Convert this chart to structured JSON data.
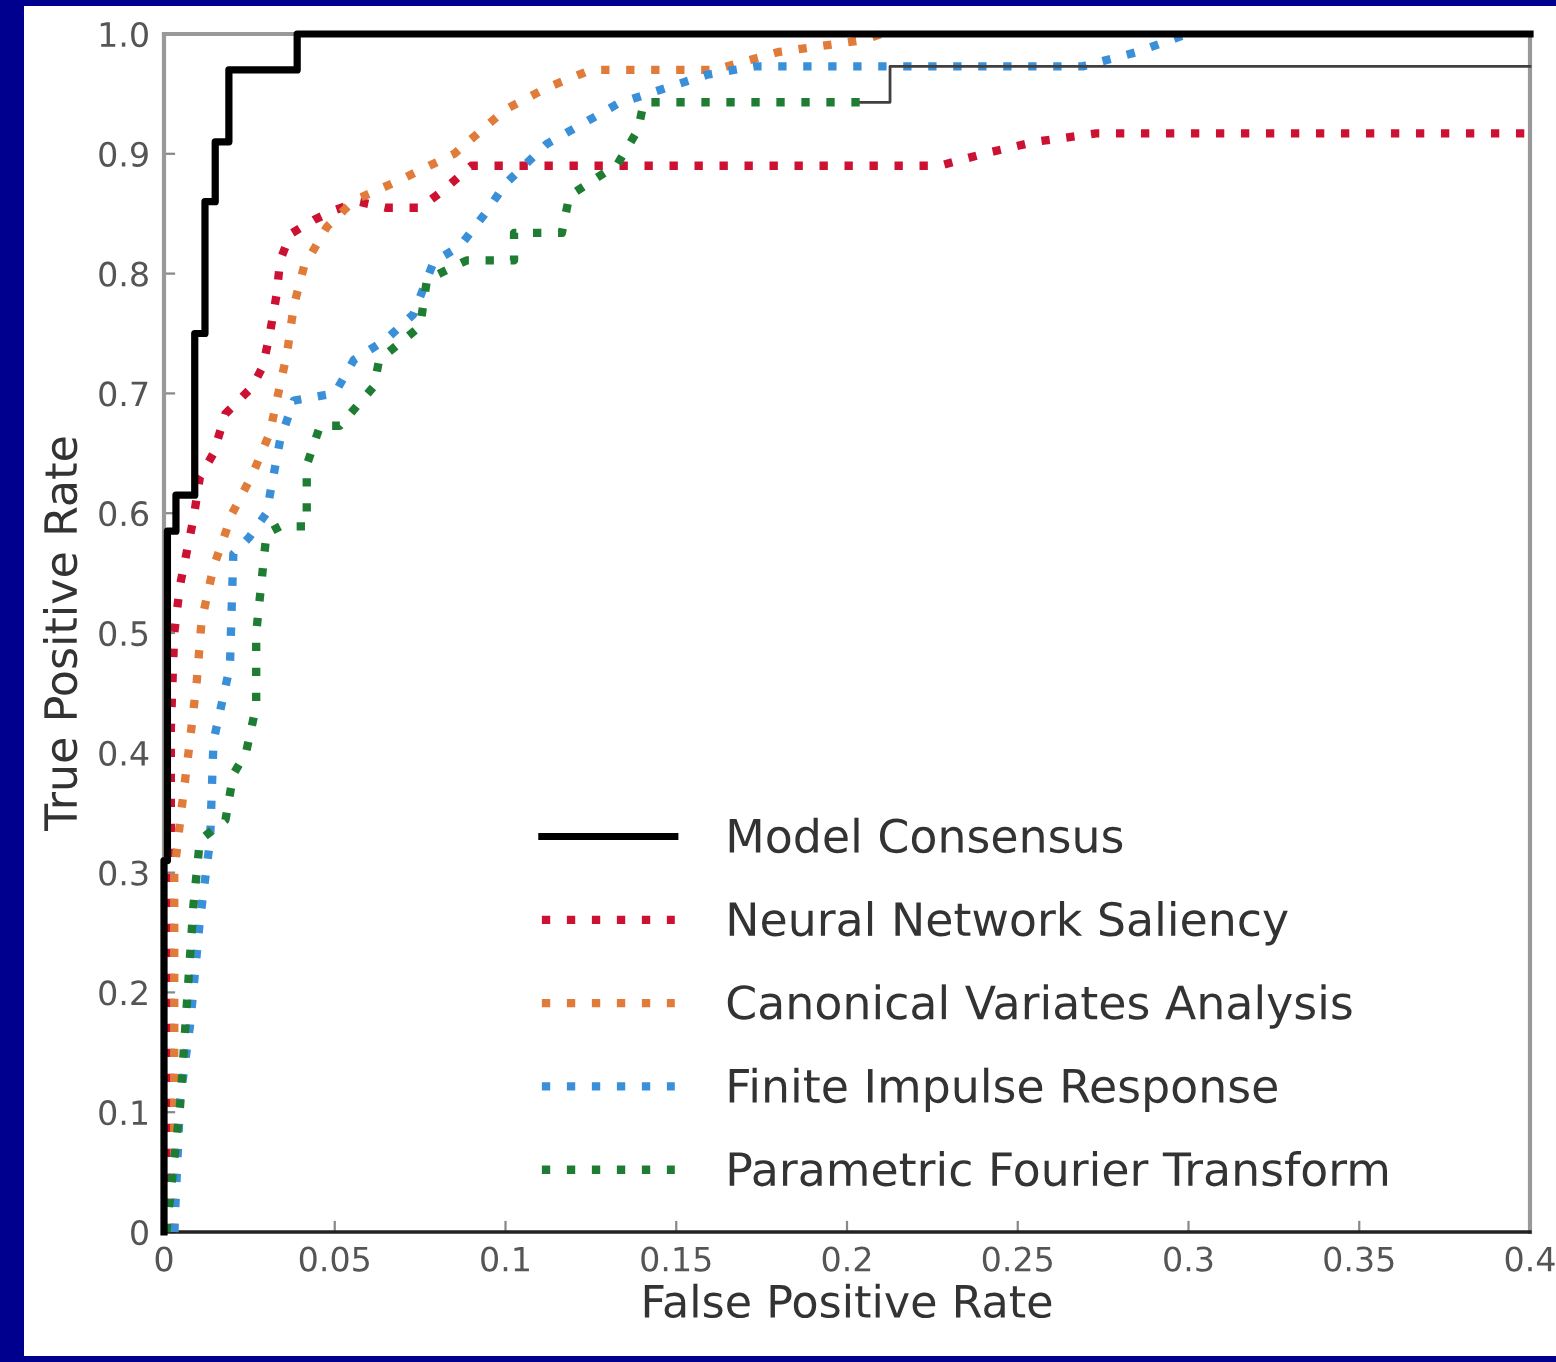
{
  "chart_data": {
    "type": "line",
    "xlabel": "False Positive Rate",
    "ylabel": "True Positive Rate",
    "xlim": [
      0,
      0.4
    ],
    "ylim": [
      0,
      1.0
    ],
    "xticks": [
      0,
      0.05,
      0.1,
      0.15,
      0.2,
      0.25,
      0.3,
      0.35,
      0.4
    ],
    "yticks": [
      0,
      0.1,
      0.2,
      0.3,
      0.4,
      0.5,
      0.6,
      0.7,
      0.8,
      0.9,
      {
        "value": 1.0,
        "label": "1.0"
      }
    ],
    "legend": "bottom right",
    "series": [
      {
        "name": "Model Consensus",
        "color": "#000000",
        "line_style": "solid",
        "x": [
          0,
          0,
          0.001,
          0.001,
          0.0035,
          0.0035,
          0.009,
          0.009,
          0.012,
          0.012,
          0.015,
          0.015,
          0.019,
          0.019,
          0.039,
          0.039,
          0.4
        ],
        "values": [
          0,
          0.31,
          0.31,
          0.585,
          0.585,
          0.615,
          0.615,
          0.75,
          0.75,
          0.86,
          0.86,
          0.91,
          0.91,
          0.97,
          0.97,
          1.0,
          1.0
        ]
      },
      {
        "name": "Neural Network Saliency",
        "color": "#cc1133",
        "line_style": "dotted",
        "x": [
          0.002,
          0.002,
          0.003,
          0.0047,
          0.0086,
          0.0105,
          0.0145,
          0.018,
          0.026,
          0.029,
          0.031,
          0.033,
          0.034,
          0.037,
          0.044,
          0.05,
          0.057,
          0.065,
          0.075,
          0.082,
          0.09,
          0.227,
          0.24,
          0.255,
          0.273,
          0.4
        ],
        "values": [
          0,
          0.42,
          0.5,
          0.54,
          0.595,
          0.63,
          0.65,
          0.683,
          0.706,
          0.723,
          0.75,
          0.783,
          0.811,
          0.833,
          0.845,
          0.853,
          0.86,
          0.855,
          0.855,
          0.87,
          0.89,
          0.89,
          0.9,
          0.91,
          0.917,
          0.917
        ]
      },
      {
        "name": "Canonical Variates Analysis",
        "color": "#e07b39",
        "line_style": "dotted",
        "x": [
          0.003,
          0.003,
          0.005,
          0.0076,
          0.0096,
          0.011,
          0.0145,
          0.02,
          0.026,
          0.031,
          0.033,
          0.036,
          0.038,
          0.041,
          0.0477,
          0.0556,
          0.069,
          0.085,
          0.1,
          0.112,
          0.125,
          0.161,
          0.18,
          0.205,
          0.21
        ],
        "values": [
          0,
          0.3,
          0.35,
          0.41,
          0.46,
          0.51,
          0.555,
          0.6,
          0.633,
          0.667,
          0.694,
          0.733,
          0.773,
          0.806,
          0.839,
          0.861,
          0.878,
          0.9,
          0.937,
          0.955,
          0.97,
          0.97,
          0.985,
          0.995,
          1.0
        ]
      },
      {
        "name": "Finite Impulse Response",
        "color": "#3a8fd9",
        "line_style": "dotted",
        "x": [
          0.003,
          0.0047,
          0.0076,
          0.0105,
          0.0135,
          0.0145,
          0.0193,
          0.0203,
          0.025,
          0.03,
          0.034,
          0.038,
          0.05,
          0.0556,
          0.065,
          0.073,
          0.079,
          0.0867,
          0.094,
          0.1,
          0.112,
          0.133,
          0.159,
          0.173,
          0.269,
          0.285,
          0.2996
        ],
        "values": [
          0,
          0.11,
          0.172,
          0.26,
          0.327,
          0.41,
          0.472,
          0.566,
          0.58,
          0.6,
          0.661,
          0.694,
          0.7,
          0.728,
          0.745,
          0.766,
          0.81,
          0.823,
          0.85,
          0.875,
          0.908,
          0.942,
          0.966,
          0.973,
          0.973,
          0.985,
          1.0
        ]
      },
      {
        "name": "Parametric Fourier Transform",
        "color": "#1e7d32",
        "line_style": "dotted",
        "x": [
          0.0007,
          0.0047,
          0.0086,
          0.0105,
          0.018,
          0.0203,
          0.024,
          0.027,
          0.027,
          0.03,
          0.034,
          0.0418,
          0.0418,
          0.0457,
          0.0515,
          0.0615,
          0.063,
          0.075,
          0.077,
          0.0886,
          0.1025,
          0.1025,
          0.1165,
          0.1187,
          0.1327,
          0.1388,
          0.1405,
          0.204
        ],
        "values": [
          0,
          0.105,
          0.272,
          0.327,
          0.344,
          0.382,
          0.4,
          0.439,
          0.5,
          0.583,
          0.589,
          0.589,
          0.64,
          0.673,
          0.673,
          0.706,
          0.728,
          0.756,
          0.795,
          0.811,
          0.811,
          0.834,
          0.834,
          0.865,
          0.891,
          0.92,
          0.943,
          0.943
        ]
      },
      {
        "color": "#404040",
        "line_style": "solid",
        "x": [
          0.204,
          0.2126,
          0.2126,
          0.4
        ],
        "values": [
          0.943,
          0.943,
          0.973,
          0.973
        ]
      }
    ]
  }
}
